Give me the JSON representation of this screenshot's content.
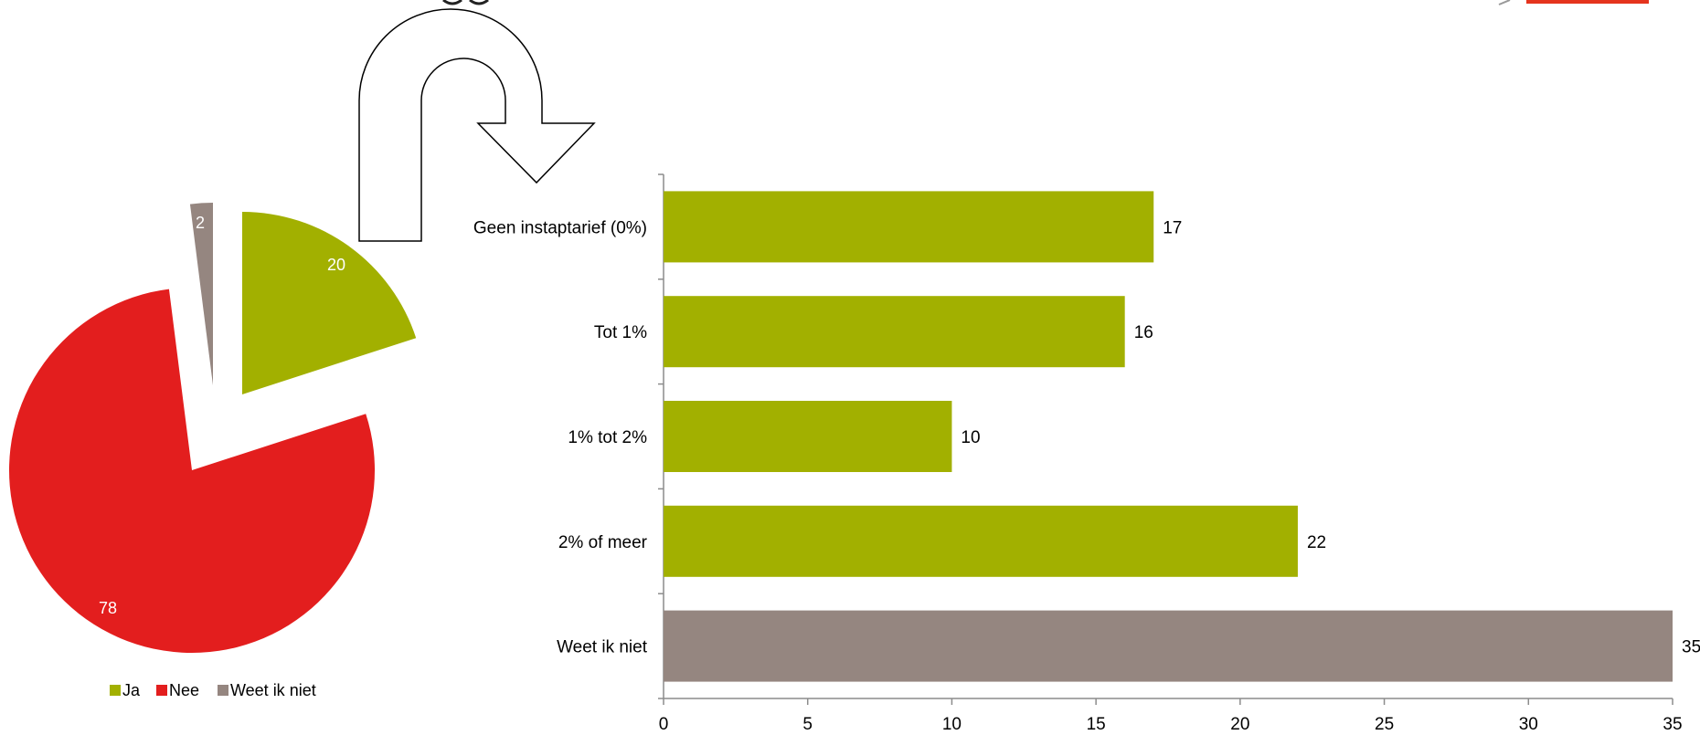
{
  "chart_data": [
    {
      "type": "pie",
      "exploded": true,
      "slices": [
        {
          "label": "Ja",
          "value": 20,
          "color": "#a2b000"
        },
        {
          "label": "Nee",
          "value": 78,
          "color": "#e31e1e"
        },
        {
          "label": "Weet ik niet",
          "value": 2,
          "color": "#958680"
        }
      ],
      "legend": {
        "position": "bottom",
        "items": [
          "Ja",
          "Nee",
          "Weet ik niet"
        ]
      }
    },
    {
      "type": "bar",
      "orientation": "horizontal",
      "categories": [
        "Geen instaptarief (0%)",
        "Tot 1%",
        "1% tot 2%",
        "2% of meer",
        "Weet ik niet"
      ],
      "values": [
        17,
        16,
        10,
        22,
        35
      ],
      "colors": [
        "#a2b000",
        "#a2b000",
        "#a2b000",
        "#a2b000",
        "#958680"
      ],
      "xlim": [
        0,
        35
      ],
      "xticks": [
        0,
        5,
        10,
        15,
        20,
        25,
        30,
        35
      ],
      "grid": false,
      "data_labels": true
    }
  ],
  "decor": {
    "arrow_icon": "u-turn-arrow-icon",
    "arrow_fill": "#ffffff",
    "arrow_stroke": "#000000",
    "logo_color": "#e5341e"
  }
}
